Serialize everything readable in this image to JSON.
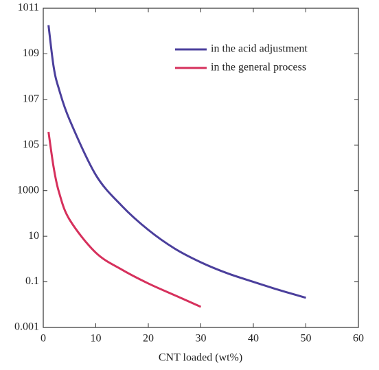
{
  "chart_data": {
    "type": "line",
    "x_label": "CNT loaded (wt%)",
    "xlim": [
      0,
      60
    ],
    "xticks": [
      0,
      10,
      20,
      30,
      40,
      50,
      60
    ],
    "ylim": [
      0.001,
      100000000000
    ],
    "log_y": true,
    "yticks": [
      0.001,
      0.1,
      10,
      1000,
      {
        "value": 100000,
        "label": "105"
      },
      {
        "value": 10000000,
        "label": "107"
      },
      {
        "value": 1000000000,
        "label": "109"
      },
      {
        "value": 100000000000,
        "label": "1011"
      }
    ],
    "legend": "upper right",
    "series": [
      {
        "name": "in the acid adjustment",
        "color": "#4b3f9c",
        "x": [
          1,
          2,
          3,
          5,
          10,
          15,
          20,
          25,
          30,
          35,
          40,
          45,
          50
        ],
        "values": [
          18000000000,
          250000000,
          28000000,
          1300000,
          4900,
          210,
          19,
          2.9,
          0.72,
          0.24,
          0.1,
          0.043,
          0.02
        ]
      },
      {
        "name": "in the general process",
        "color": "#d6305c",
        "x": [
          1,
          2,
          3,
          5,
          10,
          15,
          20,
          25,
          30
        ],
        "values": [
          380000,
          9800,
          850,
          54,
          1.9,
          0.34,
          0.085,
          0.026,
          0.008
        ]
      }
    ]
  }
}
